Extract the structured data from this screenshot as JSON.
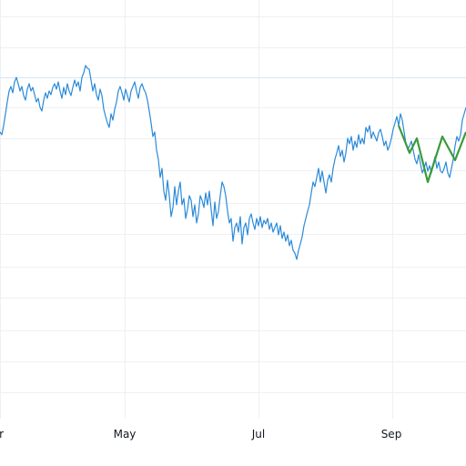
{
  "chart_data": {
    "type": "line",
    "xlabel": "",
    "ylabel": "",
    "x_tick_labels": [
      "r",
      "May",
      "Jul",
      "Sep"
    ],
    "grid": true,
    "reference_line": true,
    "series": [
      {
        "color": "#2b8ad8",
        "points": [
          [
            0,
            145
          ],
          [
            2,
            148
          ],
          [
            4,
            138
          ],
          [
            6,
            125
          ],
          [
            8,
            112
          ],
          [
            10,
            100
          ],
          [
            12,
            95
          ],
          [
            14,
            102
          ],
          [
            16,
            90
          ],
          [
            18,
            85
          ],
          [
            20,
            92
          ],
          [
            22,
            100
          ],
          [
            24,
            95
          ],
          [
            26,
            105
          ],
          [
            28,
            110
          ],
          [
            30,
            98
          ],
          [
            32,
            92
          ],
          [
            34,
            100
          ],
          [
            36,
            96
          ],
          [
            38,
            104
          ],
          [
            40,
            112
          ],
          [
            42,
            108
          ],
          [
            44,
            118
          ],
          [
            46,
            122
          ],
          [
            48,
            110
          ],
          [
            50,
            102
          ],
          [
            52,
            108
          ],
          [
            54,
            100
          ],
          [
            56,
            104
          ],
          [
            58,
            96
          ],
          [
            60,
            92
          ],
          [
            62,
            98
          ],
          [
            64,
            90
          ],
          [
            66,
            100
          ],
          [
            68,
            108
          ],
          [
            70,
            96
          ],
          [
            72,
            104
          ],
          [
            74,
            92
          ],
          [
            76,
            100
          ],
          [
            78,
            105
          ],
          [
            80,
            96
          ],
          [
            82,
            88
          ],
          [
            84,
            95
          ],
          [
            86,
            90
          ],
          [
            88,
            100
          ],
          [
            90,
            85
          ],
          [
            92,
            80
          ],
          [
            94,
            72
          ],
          [
            96,
            75
          ],
          [
            98,
            76
          ],
          [
            100,
            88
          ],
          [
            102,
            100
          ],
          [
            104,
            92
          ],
          [
            106,
            104
          ],
          [
            108,
            110
          ],
          [
            110,
            98
          ],
          [
            112,
            105
          ],
          [
            114,
            120
          ],
          [
            116,
            128
          ],
          [
            118,
            135
          ],
          [
            120,
            140
          ],
          [
            122,
            125
          ],
          [
            124,
            132
          ],
          [
            126,
            120
          ],
          [
            128,
            112
          ],
          [
            130,
            100
          ],
          [
            132,
            95
          ],
          [
            134,
            102
          ],
          [
            136,
            110
          ],
          [
            138,
            98
          ],
          [
            140,
            105
          ],
          [
            142,
            112
          ],
          [
            144,
            100
          ],
          [
            146,
            95
          ],
          [
            148,
            90
          ],
          [
            150,
            100
          ],
          [
            152,
            108
          ],
          [
            154,
            96
          ],
          [
            156,
            92
          ],
          [
            158,
            98
          ],
          [
            160,
            102
          ],
          [
            162,
            110
          ],
          [
            164,
            122
          ],
          [
            166,
            135
          ],
          [
            168,
            150
          ],
          [
            170,
            145
          ],
          [
            172,
            165
          ],
          [
            174,
            175
          ],
          [
            176,
            195
          ],
          [
            178,
            185
          ],
          [
            180,
            210
          ],
          [
            182,
            220
          ],
          [
            184,
            198
          ],
          [
            186,
            215
          ],
          [
            188,
            238
          ],
          [
            190,
            228
          ],
          [
            192,
            205
          ],
          [
            194,
            225
          ],
          [
            196,
            210
          ],
          [
            198,
            200
          ],
          [
            200,
            225
          ],
          [
            202,
            218
          ],
          [
            204,
            240
          ],
          [
            206,
            230
          ],
          [
            208,
            215
          ],
          [
            210,
            220
          ],
          [
            212,
            238
          ],
          [
            214,
            225
          ],
          [
            216,
            245
          ],
          [
            218,
            235
          ],
          [
            220,
            215
          ],
          [
            222,
            220
          ],
          [
            224,
            228
          ],
          [
            226,
            212
          ],
          [
            228,
            225
          ],
          [
            230,
            210
          ],
          [
            232,
            230
          ],
          [
            234,
            248
          ],
          [
            236,
            222
          ],
          [
            238,
            240
          ],
          [
            240,
            232
          ],
          [
            242,
            215
          ],
          [
            244,
            200
          ],
          [
            246,
            205
          ],
          [
            248,
            215
          ],
          [
            250,
            232
          ],
          [
            252,
            245
          ],
          [
            254,
            240
          ],
          [
            256,
            265
          ],
          [
            258,
            250
          ],
          [
            260,
            245
          ],
          [
            262,
            255
          ],
          [
            264,
            238
          ],
          [
            266,
            268
          ],
          [
            268,
            250
          ],
          [
            270,
            245
          ],
          [
            272,
            258
          ],
          [
            274,
            240
          ],
          [
            276,
            235
          ],
          [
            278,
            245
          ],
          [
            280,
            252
          ],
          [
            282,
            240
          ],
          [
            284,
            248
          ],
          [
            286,
            238
          ],
          [
            288,
            250
          ],
          [
            290,
            242
          ],
          [
            292,
            246
          ],
          [
            294,
            240
          ],
          [
            296,
            252
          ],
          [
            298,
            245
          ],
          [
            300,
            255
          ],
          [
            302,
            250
          ],
          [
            304,
            245
          ],
          [
            306,
            258
          ],
          [
            308,
            248
          ],
          [
            310,
            262
          ],
          [
            312,
            255
          ],
          [
            314,
            265
          ],
          [
            316,
            258
          ],
          [
            318,
            270
          ],
          [
            320,
            264
          ],
          [
            322,
            275
          ],
          [
            324,
            278
          ],
          [
            326,
            285
          ],
          [
            328,
            275
          ],
          [
            330,
            268
          ],
          [
            332,
            260
          ],
          [
            334,
            248
          ],
          [
            336,
            240
          ],
          [
            338,
            232
          ],
          [
            340,
            225
          ],
          [
            342,
            212
          ],
          [
            344,
            200
          ],
          [
            346,
            205
          ],
          [
            348,
            195
          ],
          [
            350,
            185
          ],
          [
            352,
            200
          ],
          [
            354,
            188
          ],
          [
            356,
            200
          ],
          [
            358,
            212
          ],
          [
            360,
            198
          ],
          [
            362,
            192
          ],
          [
            364,
            200
          ],
          [
            366,
            185
          ],
          [
            368,
            175
          ],
          [
            370,
            168
          ],
          [
            372,
            160
          ],
          [
            374,
            172
          ],
          [
            376,
            165
          ],
          [
            378,
            178
          ],
          [
            380,
            168
          ],
          [
            382,
            152
          ],
          [
            384,
            158
          ],
          [
            386,
            150
          ],
          [
            388,
            165
          ],
          [
            390,
            155
          ],
          [
            392,
            162
          ],
          [
            394,
            148
          ],
          [
            396,
            158
          ],
          [
            398,
            152
          ],
          [
            400,
            158
          ],
          [
            402,
            140
          ],
          [
            404,
            145
          ],
          [
            406,
            138
          ],
          [
            408,
            152
          ],
          [
            410,
            145
          ],
          [
            412,
            150
          ],
          [
            414,
            155
          ],
          [
            416,
            146
          ],
          [
            418,
            142
          ],
          [
            420,
            150
          ],
          [
            422,
            160
          ],
          [
            424,
            155
          ],
          [
            426,
            165
          ],
          [
            428,
            160
          ],
          [
            430,
            152
          ],
          [
            432,
            142
          ],
          [
            434,
            135
          ],
          [
            436,
            128
          ],
          [
            438,
            138
          ],
          [
            440,
            125
          ],
          [
            442,
            132
          ],
          [
            444,
            145
          ],
          [
            446,
            158
          ],
          [
            448,
            165
          ],
          [
            450,
            160
          ],
          [
            452,
            155
          ],
          [
            454,
            165
          ],
          [
            456,
            175
          ],
          [
            458,
            180
          ],
          [
            460,
            170
          ],
          [
            462,
            180
          ],
          [
            464,
            190
          ],
          [
            466,
            185
          ],
          [
            468,
            178
          ],
          [
            470,
            188
          ],
          [
            472,
            182
          ],
          [
            474,
            190
          ],
          [
            476,
            180
          ],
          [
            478,
            172
          ],
          [
            480,
            185
          ],
          [
            482,
            178
          ],
          [
            484,
            188
          ],
          [
            486,
            190
          ],
          [
            488,
            185
          ],
          [
            490,
            178
          ],
          [
            492,
            190
          ],
          [
            494,
            195
          ],
          [
            496,
            185
          ],
          [
            498,
            175
          ],
          [
            500,
            160
          ],
          [
            502,
            150
          ],
          [
            504,
            155
          ],
          [
            506,
            148
          ],
          [
            508,
            132
          ],
          [
            510,
            125
          ],
          [
            512,
            118
          ]
        ]
      },
      {
        "color": "#3a9a3a",
        "points": [
          [
            438,
            138
          ],
          [
            450,
            168
          ],
          [
            458,
            152
          ],
          [
            470,
            200
          ],
          [
            486,
            150
          ],
          [
            500,
            176
          ],
          [
            512,
            145
          ]
        ]
      }
    ]
  }
}
